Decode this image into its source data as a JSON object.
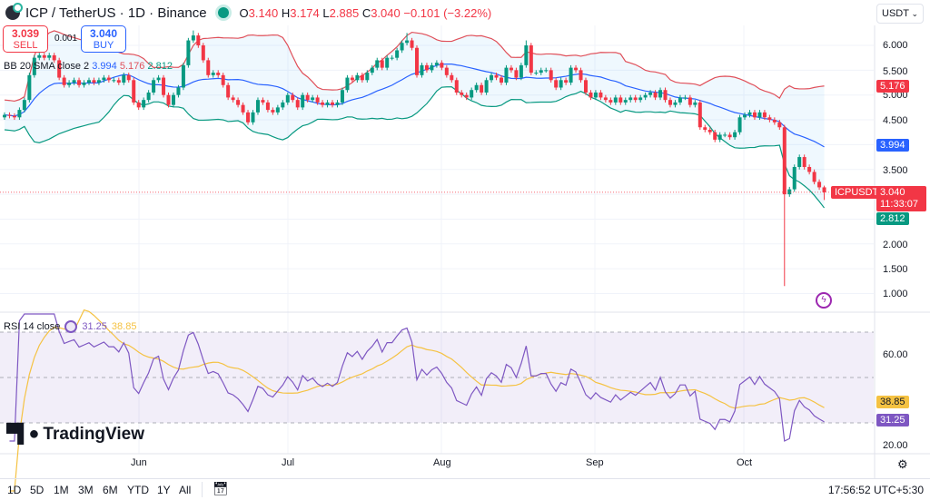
{
  "header": {
    "symbol": "ICP / TetherUS · 1D · Binance",
    "open_label": "O",
    "open": "3.140",
    "high_label": "H",
    "high": "3.174",
    "low_label": "L",
    "low": "2.885",
    "close_label": "C",
    "close": "3.040",
    "change": "−0.101 (−3.22%)"
  },
  "trade": {
    "sell_price": "3.039",
    "sell_label": "SELL",
    "spread": "0.001",
    "buy_price": "3.040",
    "buy_label": "BUY"
  },
  "bb_legend": {
    "name": "BB 20 SMA close 2",
    "basis": "3.994",
    "upper": "5.176",
    "lower": "2.812"
  },
  "currency": "USDT",
  "price_axis": {
    "ticks": [
      "6.000",
      "5.500",
      "5.000",
      "4.500",
      "3.500",
      "2.000",
      "1.500",
      "1.000"
    ],
    "tags": {
      "upper": "5.176",
      "basis": "3.994",
      "last": "3.040",
      "countdown": "11:33:07",
      "lower": "2.812",
      "symbol": "ICPUSDT"
    }
  },
  "rsi_legend": {
    "name": "RSI 14 close",
    "rsi": "31.25",
    "ma": "38.85"
  },
  "rsi_axis": {
    "ticks": [
      "60.00",
      "20.00"
    ],
    "tags": {
      "ma": "38.85",
      "rsi": "31.25"
    }
  },
  "time_axis": [
    "Jun",
    "Jul",
    "Aug",
    "Sep",
    "Oct"
  ],
  "brand": "TradingView",
  "toolbar": {
    "ranges": [
      "1D",
      "5D",
      "1M",
      "3M",
      "6M",
      "YTD",
      "1Y",
      "All"
    ],
    "clock": "17:56:52 UTC+5:30"
  },
  "colors": {
    "up": "#089981",
    "down": "#f23645",
    "bb_upper": "#e0505a",
    "bb_basis": "#2962ff",
    "bb_lower": "#089981",
    "rsi": "#7e57c2",
    "rsi_ma": "#f5c242"
  },
  "chart_data": {
    "type": "candlestick",
    "interval": "1D",
    "ylim": [
      1.0,
      6.2
    ],
    "rsi_ylim": [
      20,
      75
    ],
    "close": [
      4.6,
      4.58,
      4.55,
      4.7,
      4.9,
      5.4,
      5.75,
      5.8,
      5.75,
      5.8,
      5.7,
      5.35,
      5.2,
      5.25,
      5.3,
      5.2,
      5.25,
      5.3,
      5.25,
      5.3,
      5.35,
      5.3,
      5.3,
      5.25,
      5.4,
      5.3,
      4.85,
      4.75,
      4.9,
      5.05,
      5.3,
      5.35,
      5.0,
      4.8,
      5.0,
      5.15,
      5.6,
      6.1,
      6.2,
      6.0,
      5.7,
      5.4,
      5.45,
      5.4,
      5.2,
      4.95,
      4.9,
      4.8,
      4.65,
      4.45,
      4.65,
      4.9,
      4.85,
      4.7,
      4.65,
      4.75,
      4.85,
      5.0,
      4.9,
      4.75,
      5.0,
      4.9,
      4.95,
      4.85,
      4.8,
      4.85,
      4.8,
      4.85,
      5.1,
      5.35,
      5.3,
      5.4,
      5.3,
      5.45,
      5.55,
      5.7,
      5.55,
      5.75,
      5.75,
      5.9,
      6.05,
      6.1,
      5.95,
      5.4,
      5.6,
      5.5,
      5.6,
      5.65,
      5.55,
      5.4,
      5.3,
      5.05,
      5.0,
      4.95,
      5.1,
      5.2,
      5.05,
      5.3,
      5.4,
      5.35,
      5.25,
      5.55,
      5.5,
      5.35,
      5.6,
      6.0,
      5.45,
      5.45,
      5.5,
      5.5,
      5.3,
      5.15,
      5.3,
      5.25,
      5.55,
      5.5,
      5.3,
      5.05,
      4.95,
      5.05,
      4.95,
      4.9,
      4.85,
      4.95,
      4.85,
      4.9,
      4.95,
      4.9,
      4.95,
      5.0,
      5.05,
      4.95,
      5.1,
      4.9,
      4.8,
      4.85,
      4.95,
      4.95,
      4.8,
      4.85,
      4.35,
      4.3,
      4.25,
      4.1,
      4.2,
      4.2,
      4.15,
      4.25,
      4.55,
      4.6,
      4.65,
      4.55,
      4.65,
      4.55,
      4.5,
      4.45,
      4.35,
      3.0,
      3.1,
      3.55,
      3.75,
      3.55,
      3.45,
      3.25,
      3.14,
      3.04
    ],
    "wick_overrides": [
      {
        "index": 157,
        "low": 1.15
      },
      {
        "index": 165,
        "high": 3.174,
        "low": 2.885
      },
      {
        "index": 38,
        "high": 6.3
      },
      {
        "index": 81,
        "high": 6.25
      },
      {
        "index": 105,
        "high": 6.1
      }
    ],
    "indicators": {
      "bollinger": {
        "length": 20,
        "source": "close",
        "mult": 2
      },
      "rsi": {
        "length": 14,
        "ma_length": 14
      }
    }
  }
}
